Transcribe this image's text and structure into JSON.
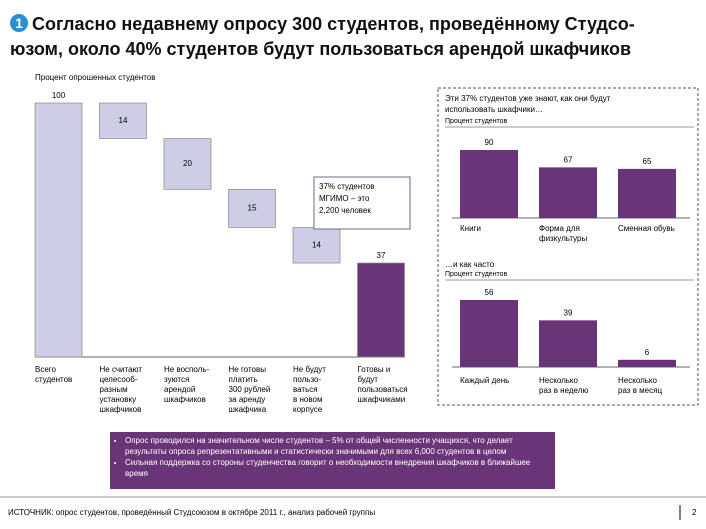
{
  "header": {
    "number": "1",
    "title": "Согласно недавнему опросу 300 студентов, проведённому Студсо-юзом, около 40% студентов будут пользоваться арендой шкафчиков"
  },
  "chart_data": [
    {
      "type": "waterfall",
      "subtitle": "Процент опрошенных студентов",
      "categories": [
        "Всего\nстудентов",
        "Не считают\nцелесооб-\nразным\nустановку\nшкафчиков",
        "Не восполь-\nзуются\nарендой\nшкафчиков",
        "Не готовы\nплатить\n300 рублей\nза аренду\nшкафчика",
        "Не будут\nпользо-\nваться\nв новом\nкорпусе",
        "Готовы и\nбудут\nпользоваться\nшкафчиками"
      ],
      "values": [
        100,
        14,
        20,
        15,
        14,
        37
      ],
      "measure": [
        "total",
        "decrease",
        "decrease",
        "decrease",
        "decrease",
        "total"
      ],
      "colors": [
        "#cdcde6",
        "#cdcde6",
        "#cdcde6",
        "#cdcde6",
        "#cdcde6",
        "#6a3578"
      ],
      "annotation": "37% студентов\nМГИМО – это\n2,200 человек"
    },
    {
      "type": "bar",
      "title": "Эти 37% студентов уже знают, как они будут\nиспользовать шкафчики…",
      "subtitle": "Процент студентов",
      "categories": [
        "Книги",
        "Форма для\nфизкультуры",
        "Сменная обувь"
      ],
      "values": [
        90,
        67,
        65
      ],
      "color": "#6a3578"
    },
    {
      "type": "bar",
      "title": "…и как часто",
      "subtitle": "Процент студентов",
      "categories": [
        "Каждый день",
        "Несколько\nраз в неделю",
        "Несколько\nраз в месяц"
      ],
      "values": [
        56,
        39,
        6
      ],
      "color": "#6a3578"
    }
  ],
  "bullets": [
    "Опрос проводился на значительном числе студентов – 5% от общей численности учащихся, что делает результаты опроса репрезентативными и статистически значимыми для всех 6,000 студентов в целом",
    "Сильная поддержка со стороны студенчества говорит о необходимости внедрения шкафчиков в ближайшее время"
  ],
  "footer": {
    "source": "ИСТОЧНИК: опрос студентов, проведённый Студсоюзом в октябре 2011 г., анализ рабочей группы",
    "page": "2"
  }
}
